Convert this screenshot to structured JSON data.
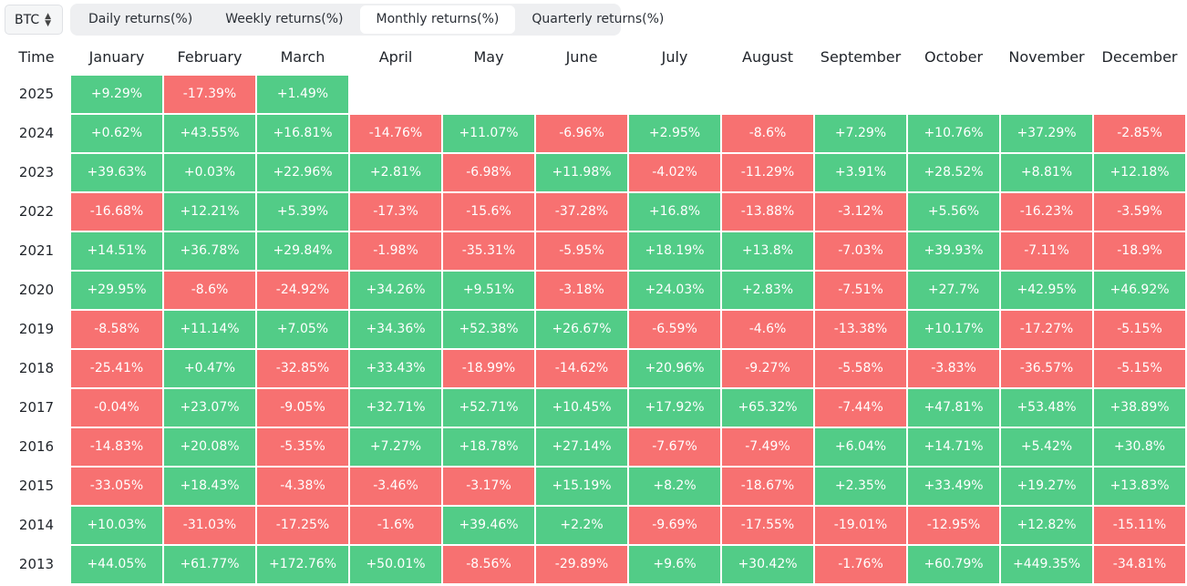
{
  "asset_selector": {
    "value": "BTC",
    "icon": "chevron-up-down-icon"
  },
  "tabs": [
    {
      "label": "Daily returns(%)",
      "active": false
    },
    {
      "label": "Weekly returns(%)",
      "active": false
    },
    {
      "label": "Monthly returns(%)",
      "active": true
    },
    {
      "label": "Quarterly returns(%)",
      "active": false
    }
  ],
  "table": {
    "time_header": "Time",
    "months": [
      "January",
      "February",
      "March",
      "April",
      "May",
      "June",
      "July",
      "August",
      "September",
      "October",
      "November",
      "December"
    ],
    "rows": [
      {
        "year": "2025",
        "values": [
          "+9.29%",
          "-17.39%",
          "+1.49%"
        ]
      },
      {
        "year": "2024",
        "values": [
          "+0.62%",
          "+43.55%",
          "+16.81%",
          "-14.76%",
          "+11.07%",
          "-6.96%",
          "+2.95%",
          "-8.6%",
          "+7.29%",
          "+10.76%",
          "+37.29%",
          "-2.85%"
        ]
      },
      {
        "year": "2023",
        "values": [
          "+39.63%",
          "+0.03%",
          "+22.96%",
          "+2.81%",
          "-6.98%",
          "+11.98%",
          "-4.02%",
          "-11.29%",
          "+3.91%",
          "+28.52%",
          "+8.81%",
          "+12.18%"
        ]
      },
      {
        "year": "2022",
        "values": [
          "-16.68%",
          "+12.21%",
          "+5.39%",
          "-17.3%",
          "-15.6%",
          "-37.28%",
          "+16.8%",
          "-13.88%",
          "-3.12%",
          "+5.56%",
          "-16.23%",
          "-3.59%"
        ]
      },
      {
        "year": "2021",
        "values": [
          "+14.51%",
          "+36.78%",
          "+29.84%",
          "-1.98%",
          "-35.31%",
          "-5.95%",
          "+18.19%",
          "+13.8%",
          "-7.03%",
          "+39.93%",
          "-7.11%",
          "-18.9%"
        ]
      },
      {
        "year": "2020",
        "values": [
          "+29.95%",
          "-8.6%",
          "-24.92%",
          "+34.26%",
          "+9.51%",
          "-3.18%",
          "+24.03%",
          "+2.83%",
          "-7.51%",
          "+27.7%",
          "+42.95%",
          "+46.92%"
        ]
      },
      {
        "year": "2019",
        "values": [
          "-8.58%",
          "+11.14%",
          "+7.05%",
          "+34.36%",
          "+52.38%",
          "+26.67%",
          "-6.59%",
          "-4.6%",
          "-13.38%",
          "+10.17%",
          "-17.27%",
          "-5.15%"
        ]
      },
      {
        "year": "2018",
        "values": [
          "-25.41%",
          "+0.47%",
          "-32.85%",
          "+33.43%",
          "-18.99%",
          "-14.62%",
          "+20.96%",
          "-9.27%",
          "-5.58%",
          "-3.83%",
          "-36.57%",
          "-5.15%"
        ]
      },
      {
        "year": "2017",
        "values": [
          "-0.04%",
          "+23.07%",
          "-9.05%",
          "+32.71%",
          "+52.71%",
          "+10.45%",
          "+17.92%",
          "+65.32%",
          "-7.44%",
          "+47.81%",
          "+53.48%",
          "+38.89%"
        ]
      },
      {
        "year": "2016",
        "values": [
          "-14.83%",
          "+20.08%",
          "-5.35%",
          "+7.27%",
          "+18.78%",
          "+27.14%",
          "-7.67%",
          "-7.49%",
          "+6.04%",
          "+14.71%",
          "+5.42%",
          "+30.8%"
        ]
      },
      {
        "year": "2015",
        "values": [
          "-33.05%",
          "+18.43%",
          "-4.38%",
          "-3.46%",
          "-3.17%",
          "+15.19%",
          "+8.2%",
          "-18.67%",
          "+2.35%",
          "+33.49%",
          "+19.27%",
          "+13.83%"
        ]
      },
      {
        "year": "2014",
        "values": [
          "+10.03%",
          "-31.03%",
          "-17.25%",
          "-1.6%",
          "+39.46%",
          "+2.2%",
          "-9.69%",
          "-17.55%",
          "-19.01%",
          "-12.95%",
          "+12.82%",
          "-15.11%"
        ]
      },
      {
        "year": "2013",
        "values": [
          "+44.05%",
          "+61.77%",
          "+172.76%",
          "+50.01%",
          "-8.56%",
          "-29.89%",
          "+9.6%",
          "+30.42%",
          "-1.76%",
          "+60.79%",
          "+449.35%",
          "-34.81%"
        ]
      }
    ]
  },
  "colors": {
    "positive": "#52cc87",
    "negative": "#f77171"
  }
}
